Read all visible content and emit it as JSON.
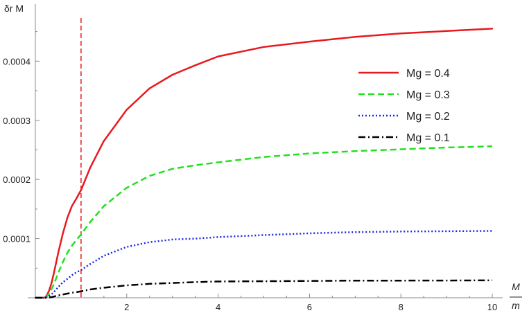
{
  "chart_data": {
    "type": "line",
    "title": "",
    "ylabel": "δr M",
    "xlabel_numerator": "M",
    "xlabel_denominator": "m",
    "xlim": [
      0,
      10
    ],
    "ylim": [
      0,
      0.00048
    ],
    "x_ticks": [
      2,
      4,
      6,
      8,
      10
    ],
    "x_tick_labels": [
      "2",
      "4",
      "6",
      "8",
      "10"
    ],
    "y_ticks": [
      0.0001,
      0.0002,
      0.0003,
      0.0004
    ],
    "y_tick_labels": [
      "0.0001",
      "0.0002",
      "0.0003",
      "0.0004"
    ],
    "vertical_marker": {
      "x": 1,
      "color": "#e8191e",
      "style": "dashed"
    },
    "legend_position": "right",
    "grid": false,
    "x": [
      0.2,
      0.25,
      0.3,
      0.35,
      0.4,
      0.5,
      0.6,
      0.7,
      0.8,
      0.9,
      1.0,
      1.2,
      1.5,
      2,
      2.5,
      3,
      3.5,
      4,
      5,
      6,
      7,
      8,
      9,
      10
    ],
    "series": [
      {
        "name": "Mg = 0.4",
        "color": "#e8191e",
        "style": "solid",
        "values": [
          0,
          4e-06,
          1.2e-05,
          2.4e-05,
          4e-05,
          7.6e-05,
          0.000108,
          0.000135,
          0.000155,
          0.000168,
          0.000182,
          0.00022,
          0.000265,
          0.000318,
          0.000354,
          0.000377,
          0.000393,
          0.000408,
          0.000424,
          0.000433,
          0.000441,
          0.000447,
          0.000451,
          0.000455
        ]
      },
      {
        "name": "Mg = 0.3",
        "color": "#22e01e",
        "style": "dashed",
        "values": [
          0,
          2e-06,
          7e-06,
          1.4e-05,
          2.2e-05,
          4.2e-05,
          6e-05,
          7.6e-05,
          8.8e-05,
          9.8e-05,
          0.000107,
          0.000128,
          0.000155,
          0.000186,
          0.000206,
          0.000218,
          0.000224,
          0.000229,
          0.000238,
          0.000244,
          0.000248,
          0.000251,
          0.000254,
          0.000256
        ]
      },
      {
        "name": "Mg = 0.2",
        "color": "#1c26e6",
        "style": "dotted",
        "values": [
          0,
          1e-06,
          3e-06,
          6e-06,
          9e-06,
          1.8e-05,
          2.6e-05,
          3.2e-05,
          3.8e-05,
          4.3e-05,
          4.7e-05,
          5.7e-05,
          7.1e-05,
          8.6e-05,
          9.4e-05,
          9.85e-05,
          0.0001,
          0.0001025,
          0.000106,
          0.000109,
          0.000111,
          0.000112,
          0.0001125,
          0.000113
        ]
      },
      {
        "name": "Mg = 0.1",
        "color": "#000000",
        "style": "dashdot",
        "values": [
          0,
          0,
          5e-07,
          1e-06,
          2e-06,
          4e-06,
          5.5e-06,
          7e-06,
          8.5e-06,
          9.5e-06,
          1.1e-05,
          1.4e-05,
          1.7e-05,
          2.1e-05,
          2.35e-05,
          2.5e-05,
          2.65e-05,
          2.75e-05,
          2.8e-05,
          2.85e-05,
          2.9e-05,
          2.9e-05,
          2.92e-05,
          2.95e-05
        ]
      }
    ]
  }
}
